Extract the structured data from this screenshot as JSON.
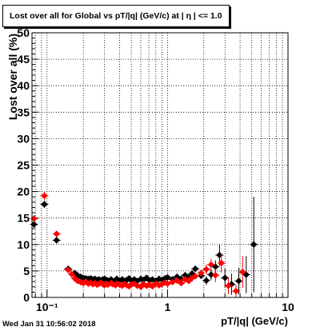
{
  "chart_data": {
    "type": "scatter",
    "title": "Lost over all for Global vs pT/|q| (GeV/c) at |  η | <= 1.0",
    "xlabel": "pT/|q| (GeV/c)",
    "ylabel": "Lost over all (%)",
    "xscale": "log",
    "xlim": [
      0.075,
      10
    ],
    "ylim": [
      0,
      50
    ],
    "x_tick_labels": [
      "10⁻¹",
      "1",
      "10"
    ],
    "y_tick_labels": [
      "0",
      "5",
      "10",
      "15",
      "20",
      "25",
      "30",
      "35",
      "40",
      "45",
      "50"
    ],
    "grid": true,
    "series": [
      {
        "color": "#000000",
        "marker": "diamond",
        "points": [
          [
            0.078,
            13.8,
            0.5
          ],
          [
            0.095,
            17.6,
            0.7
          ],
          [
            0.12,
            10.8,
            0.6
          ],
          [
            0.15,
            5.4,
            0.4
          ],
          [
            0.17,
            4.6,
            0.3
          ],
          [
            0.18,
            4.1,
            0.3
          ],
          [
            0.19,
            3.9,
            0.3
          ],
          [
            0.2,
            3.7,
            0.3
          ],
          [
            0.21,
            3.6,
            0.3
          ],
          [
            0.22,
            3.5,
            0.3
          ],
          [
            0.23,
            3.6,
            0.3
          ],
          [
            0.24,
            3.4,
            0.3
          ],
          [
            0.25,
            3.5,
            0.3
          ],
          [
            0.26,
            3.3,
            0.3
          ],
          [
            0.27,
            3.4,
            0.3
          ],
          [
            0.28,
            3.2,
            0.3
          ],
          [
            0.29,
            3.4,
            0.3
          ],
          [
            0.3,
            3.5,
            0.3
          ],
          [
            0.31,
            3.3,
            0.3
          ],
          [
            0.32,
            3.2,
            0.3
          ],
          [
            0.34,
            3.4,
            0.3
          ],
          [
            0.35,
            3.1,
            0.3
          ],
          [
            0.37,
            3.3,
            0.3
          ],
          [
            0.38,
            3.5,
            0.3
          ],
          [
            0.4,
            3.2,
            0.3
          ],
          [
            0.42,
            3.4,
            0.3
          ],
          [
            0.44,
            3.1,
            0.3
          ],
          [
            0.46,
            3.3,
            0.3
          ],
          [
            0.48,
            3.6,
            0.3
          ],
          [
            0.5,
            3.2,
            0.3
          ],
          [
            0.53,
            3.4,
            0.3
          ],
          [
            0.56,
            3.1,
            0.3
          ],
          [
            0.6,
            3.5,
            0.3
          ],
          [
            0.63,
            3.3,
            0.3
          ],
          [
            0.67,
            3.7,
            0.3
          ],
          [
            0.71,
            3.2,
            0.3
          ],
          [
            0.75,
            3.4,
            0.3
          ],
          [
            0.8,
            3.1,
            0.3
          ],
          [
            0.85,
            3.5,
            0.3
          ],
          [
            0.9,
            3.3,
            0.3
          ],
          [
            0.95,
            3.6,
            0.3
          ],
          [
            1.0,
            3.8,
            0.3
          ],
          [
            1.1,
            3.4,
            0.4
          ],
          [
            1.2,
            3.9,
            0.4
          ],
          [
            1.3,
            3.5,
            0.4
          ],
          [
            1.4,
            4.2,
            0.5
          ],
          [
            1.5,
            3.8,
            0.5
          ],
          [
            1.6,
            4.5,
            0.5
          ],
          [
            1.7,
            5.4,
            0.6
          ],
          [
            1.9,
            4.1,
            0.6
          ],
          [
            2.1,
            3.2,
            0.8
          ],
          [
            2.3,
            4.3,
            1.0
          ],
          [
            2.5,
            5.8,
            1.2
          ],
          [
            2.7,
            8.0,
            2.0
          ],
          [
            3.0,
            3.7,
            1.8
          ],
          [
            3.4,
            2.5,
            2.0
          ],
          [
            3.9,
            3.1,
            2.5
          ],
          [
            4.5,
            4.3,
            3.5
          ],
          [
            5.2,
            10.0,
            9.0
          ]
        ]
      },
      {
        "color": "#ff0000",
        "marker": "diamond",
        "points": [
          [
            0.078,
            14.9,
            0.6
          ],
          [
            0.095,
            19.2,
            0.8
          ],
          [
            0.12,
            12.0,
            0.6
          ],
          [
            0.15,
            5.2,
            0.4
          ],
          [
            0.16,
            4.4,
            0.3
          ],
          [
            0.17,
            3.6,
            0.3
          ],
          [
            0.18,
            3.1,
            0.3
          ],
          [
            0.19,
            2.9,
            0.3
          ],
          [
            0.2,
            2.7,
            0.3
          ],
          [
            0.21,
            3.0,
            0.3
          ],
          [
            0.22,
            2.6,
            0.3
          ],
          [
            0.23,
            2.8,
            0.3
          ],
          [
            0.24,
            2.5,
            0.3
          ],
          [
            0.25,
            2.7,
            0.3
          ],
          [
            0.26,
            2.4,
            0.3
          ],
          [
            0.27,
            2.6,
            0.3
          ],
          [
            0.28,
            2.8,
            0.3
          ],
          [
            0.29,
            2.5,
            0.3
          ],
          [
            0.3,
            2.3,
            0.3
          ],
          [
            0.31,
            2.6,
            0.3
          ],
          [
            0.32,
            2.4,
            0.3
          ],
          [
            0.34,
            2.7,
            0.3
          ],
          [
            0.35,
            2.5,
            0.3
          ],
          [
            0.37,
            2.3,
            0.3
          ],
          [
            0.38,
            2.6,
            0.3
          ],
          [
            0.4,
            2.4,
            0.3
          ],
          [
            0.42,
            2.2,
            0.3
          ],
          [
            0.44,
            2.5,
            0.3
          ],
          [
            0.46,
            2.3,
            0.3
          ],
          [
            0.48,
            2.1,
            0.3
          ],
          [
            0.5,
            2.4,
            0.3
          ],
          [
            0.53,
            2.6,
            0.3
          ],
          [
            0.56,
            2.2,
            0.3
          ],
          [
            0.6,
            2.0,
            0.3
          ],
          [
            0.63,
            2.5,
            0.3
          ],
          [
            0.67,
            2.2,
            0.3
          ],
          [
            0.71,
            2.4,
            0.3
          ],
          [
            0.75,
            2.1,
            0.3
          ],
          [
            0.8,
            2.6,
            0.3
          ],
          [
            0.85,
            2.3,
            0.3
          ],
          [
            0.9,
            2.5,
            0.3
          ],
          [
            0.95,
            2.8,
            0.3
          ],
          [
            1.0,
            2.6,
            0.3
          ],
          [
            1.1,
            2.9,
            0.4
          ],
          [
            1.2,
            3.2,
            0.4
          ],
          [
            1.3,
            2.7,
            0.4
          ],
          [
            1.4,
            3.4,
            0.5
          ],
          [
            1.5,
            3.1,
            0.5
          ],
          [
            1.6,
            3.7,
            0.5
          ],
          [
            1.7,
            4.0,
            0.6
          ],
          [
            1.9,
            4.6,
            0.7
          ],
          [
            2.1,
            5.3,
            0.9
          ],
          [
            2.3,
            6.2,
            1.1
          ],
          [
            2.5,
            4.2,
            1.3
          ],
          [
            2.8,
            6.5,
            1.8
          ],
          [
            3.2,
            2.2,
            1.6
          ],
          [
            3.7,
            1.2,
            1.2
          ],
          [
            4.2,
            4.8,
            3.0
          ]
        ]
      }
    ]
  },
  "footer": "Wed Jan 31 10:56:02 2018"
}
